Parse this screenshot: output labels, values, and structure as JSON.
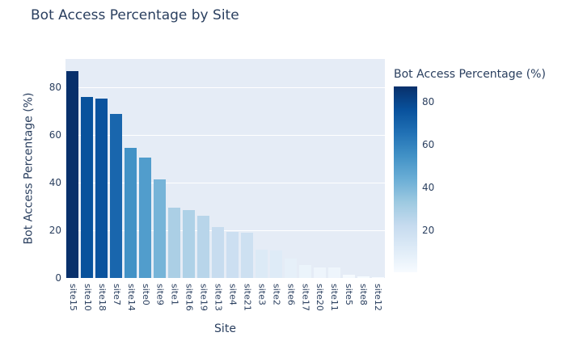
{
  "chart_data": {
    "type": "bar",
    "title": "Bot Access Percentage by Site",
    "xlabel": "Site",
    "ylabel": "Bot Access Percentage (%)",
    "categories": [
      "site15",
      "site10",
      "site18",
      "site7",
      "site14",
      "site0",
      "site9",
      "site1",
      "site16",
      "site19",
      "site13",
      "site4",
      "site21",
      "site3",
      "site2",
      "site6",
      "site17",
      "site20",
      "site11",
      "site5",
      "site8",
      "site12"
    ],
    "values": [
      87,
      76,
      75.5,
      69,
      54.5,
      50.5,
      41.5,
      29.5,
      28.5,
      26,
      21.5,
      19.5,
      19,
      12,
      11.5,
      8,
      5.5,
      4.5,
      4.5,
      1.2,
      0.8,
      0.5
    ],
    "ylim": [
      0,
      92
    ],
    "yticks": [
      0,
      20,
      40,
      60,
      80
    ],
    "grid": true,
    "colorbar": {
      "title": "Bot Access Percentage (%)",
      "ticks": [
        20,
        40,
        60,
        80
      ],
      "cmin": 0.5,
      "cmax": 87
    },
    "colors": {
      "font": "#2a3f5f",
      "plot_bg": "#e5ecf6",
      "paper_bg": "#ffffff",
      "grid": "#ffffff",
      "colorscale_blues": [
        [
          0.0,
          "#f7fbff"
        ],
        [
          0.125,
          "#deebf7"
        ],
        [
          0.25,
          "#c6dbef"
        ],
        [
          0.375,
          "#9ecae1"
        ],
        [
          0.5,
          "#6baed6"
        ],
        [
          0.625,
          "#4292c6"
        ],
        [
          0.75,
          "#2171b5"
        ],
        [
          0.875,
          "#08519c"
        ],
        [
          1.0,
          "#08306b"
        ]
      ]
    }
  }
}
